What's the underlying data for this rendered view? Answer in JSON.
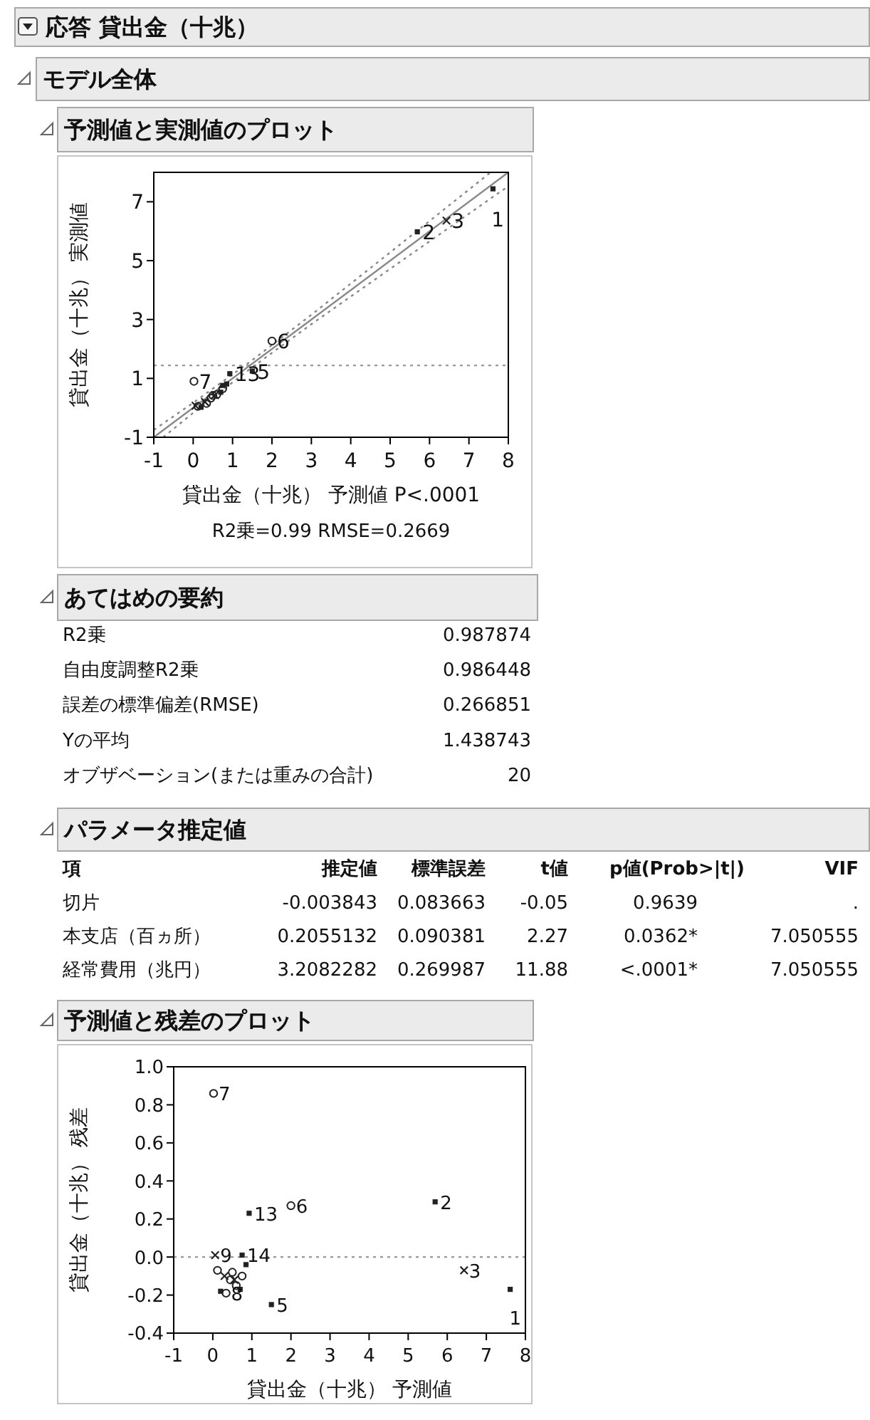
{
  "chart_data": [
    {
      "type": "other",
      "title": "応答 貸出金（十兆）",
      "subtitle": "モデル全体"
    },
    {
      "type": "scatter",
      "title": "予測値と実測値のプロット",
      "xlabel": "貸出金（十兆） 予測値 P<.0001",
      "ylabel": "貸出金（十兆） 実測値",
      "xlim": [
        -1,
        8
      ],
      "ylim": [
        -1,
        8
      ],
      "xticks": [
        -1,
        0,
        1,
        2,
        3,
        4,
        5,
        6,
        7,
        8
      ],
      "yticks": [
        -1,
        1,
        3,
        5,
        7
      ],
      "ref_lines": [
        {
          "axis": "y",
          "value": 1.44,
          "color": "#999999",
          "line_style": "dotted"
        }
      ],
      "series": [
        {
          "type": "line",
          "color": "#888888",
          "line_style": "solid",
          "x": [
            -1,
            8
          ],
          "values": [
            -1,
            8
          ]
        },
        {
          "type": "line",
          "color": "#888888",
          "line_style": "dotted",
          "x": [
            -1,
            0,
            1.44,
            3,
            5,
            7.55
          ],
          "values": [
            -0.75,
            0.17,
            1.56,
            3.16,
            5.28,
            8.0
          ]
        },
        {
          "type": "line",
          "color": "#888888",
          "line_style": "dotted",
          "x": [
            -0.76,
            0,
            1.44,
            3,
            5,
            8
          ],
          "values": [
            -1.0,
            -0.17,
            1.32,
            2.84,
            4.72,
            7.53
          ]
        },
        {
          "type": "scatter",
          "color": "#222222",
          "marker": "square",
          "x": [
            7.61,
            5.69,
            1.5,
            0.2,
            0.93,
            0.75,
            0.85,
            0.7
          ],
          "values": [
            7.44,
            5.98,
            1.25,
            0.02,
            1.16,
            0.76,
            0.81,
            0.53
          ]
        },
        {
          "type": "scatter",
          "color": "#222222",
          "marker": "circle",
          "x": [
            0.45,
            2.0,
            0.02,
            0.34,
            0.75,
            0.6,
            0.5,
            0.12
          ],
          "values": [
            0.33,
            2.27,
            0.9,
            0.15,
            0.65,
            0.45,
            0.42,
            0.05
          ]
        },
        {
          "type": "scatter",
          "color": "#222222",
          "marker": "cross",
          "x": [
            6.43,
            0.06,
            0.3,
            0.55
          ],
          "values": [
            6.36,
            0.07,
            0.2,
            0.43
          ]
        }
      ],
      "annotations": [
        {
          "text": "1",
          "x": 7.61,
          "y": 7.44
        },
        {
          "text": "2",
          "x": 5.69,
          "y": 5.98
        },
        {
          "text": "3",
          "x": 6.43,
          "y": 6.36
        },
        {
          "text": "5",
          "x": 1.5,
          "y": 1.25
        },
        {
          "text": "6",
          "x": 2.0,
          "y": 2.27
        },
        {
          "text": "7",
          "x": 0.02,
          "y": 0.9
        },
        {
          "text": "13",
          "x": 0.93,
          "y": 1.16
        },
        "R2乗=0.99 RMSE=0.2669"
      ]
    },
    {
      "type": "other",
      "title": "あてはめの要約",
      "y_categories": [
        "R2乗",
        "自由度調整R2乗",
        "誤差の標準偏差(RMSE)",
        "Yの平均",
        "オブザベーション(または重みの合計)"
      ],
      "annotations": [
        "0.987874",
        "0.986448",
        "0.266851",
        "1.438743",
        "20"
      ]
    },
    {
      "type": "other",
      "title": "パラメータ推定値",
      "categories": [
        "項",
        "推定値",
        "標準誤差",
        "t値",
        "p値(Prob>|t|)",
        "VIF"
      ],
      "y_categories": [
        "切片",
        "本支店（百ヵ所）",
        "経常費用（兆円）"
      ],
      "annotations": [
        "-0.003843",
        "0.083663",
        "-0.05",
        "0.9639",
        ".",
        "0.2055132",
        "0.090381",
        "2.27",
        "0.0362*",
        "7.050555",
        "3.2082282",
        "0.269987",
        "11.88",
        "<.0001*",
        "7.050555"
      ]
    },
    {
      "type": "scatter",
      "title": "予測値と残差のプロット",
      "xlabel": "貸出金（十兆） 予測値",
      "ylabel": "貸出金（十兆） 残差",
      "xlim": [
        -1,
        8
      ],
      "ylim": [
        -0.4,
        1.0
      ],
      "xticks": [
        -1,
        0,
        1,
        2,
        3,
        4,
        5,
        6,
        7,
        8
      ],
      "yticks": [
        -0.4,
        -0.2,
        {
          "value": 0,
          "label": "0.0"
        },
        0.2,
        0.4,
        0.6,
        0.8,
        {
          "value": 1,
          "label": "1.0"
        }
      ],
      "ref_lines": [
        {
          "axis": "y",
          "value": 0,
          "color": "#999999",
          "line_style": "dotted"
        }
      ],
      "series": [
        {
          "type": "scatter",
          "color": "#222222",
          "marker": "square",
          "x": [
            7.61,
            5.69,
            1.5,
            0.2,
            0.93,
            0.75,
            0.85,
            0.7
          ],
          "values": [
            -0.17,
            0.29,
            -0.25,
            -0.18,
            0.23,
            0.01,
            -0.04,
            -0.17
          ]
        },
        {
          "type": "scatter",
          "color": "#222222",
          "marker": "circle",
          "x": [
            0.45,
            2.0,
            0.02,
            0.34,
            0.75,
            0.6,
            0.5,
            0.12
          ],
          "values": [
            -0.12,
            0.27,
            0.86,
            -0.19,
            -0.1,
            -0.15,
            -0.08,
            -0.07
          ]
        },
        {
          "type": "scatter",
          "color": "#222222",
          "marker": "cross",
          "x": [
            6.43,
            0.06,
            0.3,
            0.55
          ],
          "values": [
            -0.07,
            0.01,
            -0.1,
            -0.12
          ]
        }
      ],
      "annotations": [
        {
          "text": "1",
          "x": 7.61,
          "y": -0.17
        },
        {
          "text": "2",
          "x": 5.69,
          "y": 0.29
        },
        {
          "text": "3",
          "x": 6.43,
          "y": -0.07
        },
        {
          "text": "5",
          "x": 1.5,
          "y": -0.25
        },
        {
          "text": "6",
          "x": 2.0,
          "y": 0.27
        },
        {
          "text": "7",
          "x": 0.02,
          "y": 0.86
        },
        {
          "text": "8",
          "x": 0.34,
          "y": -0.19
        },
        {
          "text": "9",
          "x": 0.06,
          "y": 0.01
        },
        {
          "text": "13",
          "x": 0.93,
          "y": 0.23
        },
        {
          "text": "14",
          "x": 0.75,
          "y": 0.01
        }
      ]
    }
  ]
}
